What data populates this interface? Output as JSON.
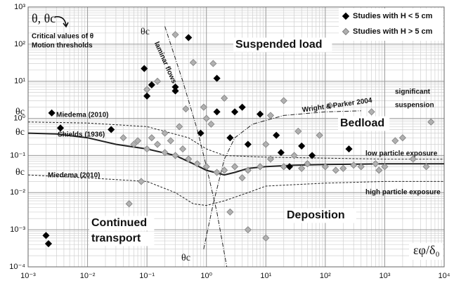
{
  "chart_data": {
    "type": "scatter",
    "x_scale": "log",
    "y_scale": "log",
    "xlim": [
      0.001,
      10000
    ],
    "ylim": [
      0.0001,
      1000
    ],
    "xticks": [
      {
        "value": 0.001,
        "label": "10⁻³"
      },
      {
        "value": 0.01,
        "label": "10⁻²"
      },
      {
        "value": 0.1,
        "label": "10⁻¹"
      },
      {
        "value": 1,
        "label": "10⁰"
      },
      {
        "value": 10,
        "label": "10¹"
      },
      {
        "value": 100,
        "label": "10²"
      },
      {
        "value": 1000,
        "label": "10³"
      },
      {
        "value": 10000,
        "label": "10⁴"
      }
    ],
    "yticks": [
      {
        "value": 0.0001,
        "label": "10⁻⁴"
      },
      {
        "value": 0.001,
        "label": "10⁻³"
      },
      {
        "value": 0.01,
        "label": "10⁻²"
      },
      {
        "value": 0.1,
        "label": "10⁻¹"
      },
      {
        "value": 1,
        "label": "10⁰"
      },
      {
        "value": 10,
        "label": "10¹"
      },
      {
        "value": 100,
        "label": "10²"
      },
      {
        "value": 1000,
        "label": "10³"
      }
    ],
    "grid": true,
    "legend": "upper right",
    "xlabel": "εφ/δ₀",
    "series": [
      {
        "name": "Studies with H < 5 cm",
        "color": "#000000",
        "x": [
          0.0025,
          0.0035,
          0.002,
          0.0022,
          0.025,
          0.09,
          0.1,
          0.12,
          0.3,
          0.3,
          0.5,
          0.8,
          1.5,
          1.5,
          2.5,
          3,
          4,
          5,
          8,
          15,
          18,
          25,
          40,
          60,
          250
        ],
        "values": [
          1.4,
          0.55,
          0.0007,
          0.00042,
          0.5,
          22,
          4,
          8,
          7,
          5.5,
          150,
          0.4,
          12,
          1.5,
          0.3,
          1.5,
          2,
          0.2,
          1.3,
          0.35,
          0.12,
          0.05,
          0.18,
          0.1,
          0.15
        ]
      },
      {
        "name": "Studies with H > 5 cm",
        "color": "#b0b0b0",
        "x": [
          0.3,
          0.6,
          0.1,
          0.15,
          1.3,
          0.9,
          1,
          0.45,
          0.35,
          2,
          1.2,
          0.08,
          0.05,
          2.5,
          5,
          10,
          12,
          20,
          10,
          12,
          30,
          35,
          80,
          120,
          400,
          600,
          6000,
          1500,
          3000,
          2000,
          1000,
          5000,
          800,
          0.04,
          0.06,
          0.07,
          0.1,
          0.15,
          0.2,
          0.3,
          0.5,
          0.7,
          1,
          2,
          3,
          5,
          8,
          20,
          40,
          100,
          200,
          400,
          700,
          0.25,
          1.5,
          0.4,
          0.2,
          4,
          50,
          150,
          300,
          0.12
        ],
        "values": [
          180,
          32,
          6,
          10,
          30,
          2,
          1,
          1.8,
          0.6,
          3.5,
          0.7,
          0.02,
          0.005,
          0.003,
          0.001,
          0.0006,
          1.2,
          3,
          0.2,
          0.08,
          0.1,
          0.45,
          0.35,
          2.2,
          0.9,
          1.5,
          0.8,
          0.25,
          0.08,
          0.3,
          0.05,
          0.05,
          0.04,
          0.3,
          0.2,
          0.25,
          0.15,
          0.2,
          0.12,
          0.1,
          0.08,
          0.06,
          0.05,
          0.04,
          0.05,
          0.04,
          0.05,
          0.05,
          0.045,
          0.05,
          0.045,
          0.05,
          0.06,
          0.25,
          0.035,
          0.15,
          0.4,
          0.025,
          0.06,
          0.04,
          0.055,
          0.3
        ]
      }
    ],
    "curves": [
      {
        "style": "solid",
        "x": [
          0.001,
          0.003,
          0.01,
          0.03,
          0.1,
          0.3,
          0.6,
          1,
          2,
          3,
          5,
          10,
          30,
          100,
          1000,
          10000
        ],
        "values": [
          0.4,
          0.38,
          0.3,
          0.2,
          0.15,
          0.1,
          0.06,
          0.04,
          0.03,
          0.035,
          0.045,
          0.05,
          0.055,
          0.057,
          0.06,
          0.06
        ]
      },
      {
        "style": "dashed",
        "x": [
          0.001,
          0.01,
          0.1,
          0.5,
          1,
          2,
          10,
          100,
          1000,
          10000
        ],
        "values": [
          0.8,
          0.75,
          0.6,
          0.3,
          0.15,
          0.1,
          0.09,
          0.085,
          0.08,
          0.08
        ]
      },
      {
        "style": "dashed",
        "x": [
          0.001,
          0.01,
          0.1,
          0.3,
          0.6,
          1,
          2,
          5,
          10,
          100,
          1000,
          10000
        ],
        "values": [
          0.03,
          0.025,
          0.02,
          0.01,
          0.005,
          0.0045,
          0.006,
          0.01,
          0.015,
          0.018,
          0.02,
          0.02
        ]
      },
      {
        "style": "dashdot",
        "x": [
          0.2,
          0.4,
          0.7,
          1,
          1.5,
          2.2
        ],
        "values": [
          300,
          10,
          0.5,
          0.05,
          0.003,
          0.0001
        ]
      },
      {
        "style": "dashdot",
        "x": [
          0.9,
          1.3,
          2,
          3,
          6,
          20,
          100,
          400
        ],
        "values": [
          0.0003,
          0.005,
          0.08,
          0.3,
          0.7,
          1.2,
          1.5,
          1.6
        ]
      }
    ],
    "annotations": [
      "θ, θc",
      "Critical values of θ",
      "Motion thresholds",
      "Suspended load",
      "Bedload",
      "Deposition",
      "Continued",
      "transport",
      "Shields (1936)",
      "Miedema (2010)",
      "Miedema (2010)",
      "laminar flows",
      "Wright & Parker 2004",
      "significant",
      "suspension",
      "low particle exposure",
      "high particle exposure",
      "θc",
      "θc",
      "θc",
      "θc",
      "θc"
    ]
  }
}
